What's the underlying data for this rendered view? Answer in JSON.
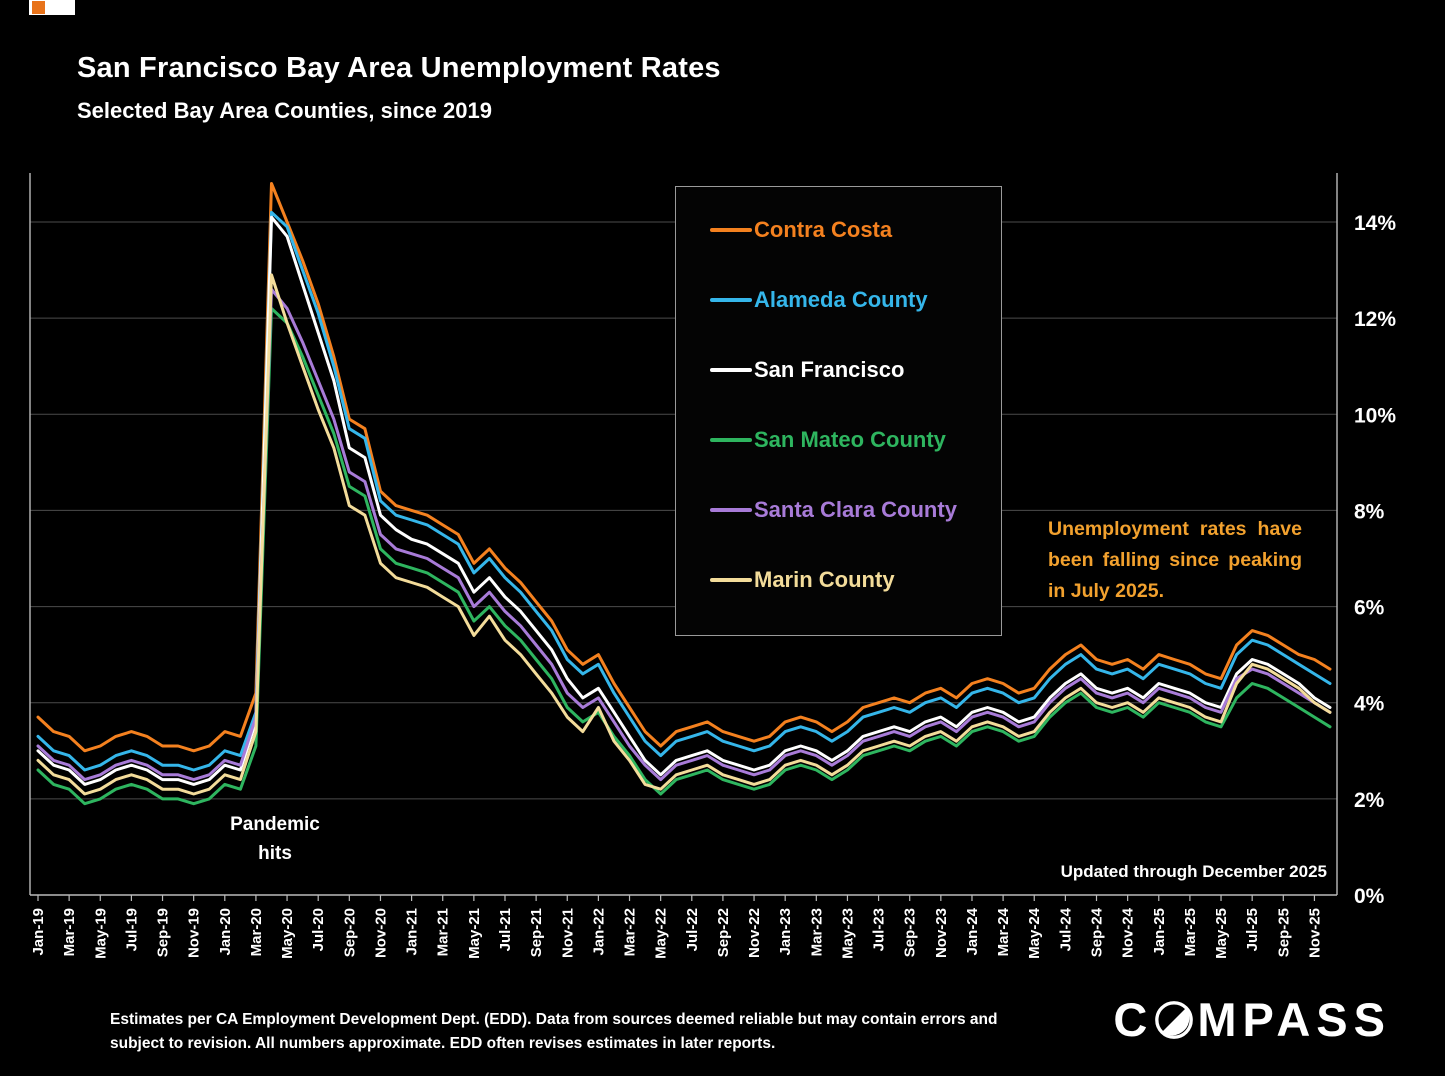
{
  "title": "San Francisco Bay Area Unemployment Rates",
  "subtitle": "Selected Bay Area Counties, since 2019",
  "annotations": {
    "pandemic_line1": "Pandemic",
    "pandemic_line2": "hits",
    "falling_note": "Unemployment rates have been falling since peaking in July 2025.",
    "updated": "Updated through December 2025"
  },
  "footer": {
    "disclaimer": "Estimates per CA Employment Development Dept. (EDD). Data from sources deemed reliable but may contain errors and subject to revision. All numbers approximate.  EDD often revises estimates in later reports.",
    "brand_c": "C",
    "brand_rest": "MPASS"
  },
  "colors": {
    "background": "#000000",
    "gridline": "#4b4b4b",
    "axis": "#bbbbbb",
    "text": "#ffffff",
    "note_gold": "#f2a12e"
  },
  "chart_data": {
    "type": "line",
    "title": "San Francisco Bay Area Unemployment Rates",
    "subtitle": "Selected Bay Area Counties, since 2019",
    "grid": "horizontal",
    "legend_position": "upper-middle-box",
    "ylim": [
      0,
      15
    ],
    "yticks": [
      0,
      2,
      4,
      6,
      8,
      10,
      12,
      14
    ],
    "ytick_suffix": "%",
    "x_tick_step": 2,
    "x": [
      "Jan-19",
      "Feb-19",
      "Mar-19",
      "Apr-19",
      "May-19",
      "Jun-19",
      "Jul-19",
      "Aug-19",
      "Sep-19",
      "Oct-19",
      "Nov-19",
      "Dec-19",
      "Jan-20",
      "Feb-20",
      "Mar-20",
      "Apr-20",
      "May-20",
      "Jun-20",
      "Jul-20",
      "Aug-20",
      "Sep-20",
      "Oct-20",
      "Nov-20",
      "Dec-20",
      "Jan-21",
      "Feb-21",
      "Mar-21",
      "Apr-21",
      "May-21",
      "Jun-21",
      "Jul-21",
      "Aug-21",
      "Sep-21",
      "Oct-21",
      "Nov-21",
      "Dec-21",
      "Jan-22",
      "Feb-22",
      "Mar-22",
      "Apr-22",
      "May-22",
      "Jun-22",
      "Jul-22",
      "Aug-22",
      "Sep-22",
      "Oct-22",
      "Nov-22",
      "Dec-22",
      "Jan-23",
      "Feb-23",
      "Mar-23",
      "Apr-23",
      "May-23",
      "Jun-23",
      "Jul-23",
      "Aug-23",
      "Sep-23",
      "Oct-23",
      "Nov-23",
      "Dec-23",
      "Jan-24",
      "Feb-24",
      "Mar-24",
      "Apr-24",
      "May-24",
      "Jun-24",
      "Jul-24",
      "Aug-24",
      "Sep-24",
      "Oct-24",
      "Nov-24",
      "Dec-24",
      "Jan-25",
      "Feb-25",
      "Mar-25",
      "Apr-25",
      "May-25",
      "Jun-25",
      "Jul-25",
      "Aug-25",
      "Sep-25",
      "Oct-25",
      "Nov-25",
      "Dec-25"
    ],
    "series": [
      {
        "name": "Contra Costa",
        "color": "#f4811f",
        "values": [
          3.7,
          3.4,
          3.3,
          3.0,
          3.1,
          3.3,
          3.4,
          3.3,
          3.1,
          3.1,
          3.0,
          3.1,
          3.4,
          3.3,
          4.2,
          14.8,
          14.0,
          13.2,
          12.3,
          11.2,
          9.9,
          9.7,
          8.4,
          8.1,
          8.0,
          7.9,
          7.7,
          7.5,
          6.9,
          7.2,
          6.8,
          6.5,
          6.1,
          5.7,
          5.1,
          4.8,
          5.0,
          4.4,
          3.9,
          3.4,
          3.1,
          3.4,
          3.5,
          3.6,
          3.4,
          3.3,
          3.2,
          3.3,
          3.6,
          3.7,
          3.6,
          3.4,
          3.6,
          3.9,
          4.0,
          4.1,
          4.0,
          4.2,
          4.3,
          4.1,
          4.4,
          4.5,
          4.4,
          4.2,
          4.3,
          4.7,
          5.0,
          5.2,
          4.9,
          4.8,
          4.9,
          4.7,
          5.0,
          4.9,
          4.8,
          4.6,
          4.5,
          5.2,
          5.5,
          5.4,
          5.2,
          5.0,
          4.9,
          4.7
        ]
      },
      {
        "name": "Alameda County",
        "color": "#35b6ea",
        "values": [
          3.3,
          3.0,
          2.9,
          2.6,
          2.7,
          2.9,
          3.0,
          2.9,
          2.7,
          2.7,
          2.6,
          2.7,
          3.0,
          2.9,
          3.8,
          14.2,
          13.9,
          13.0,
          12.1,
          11.0,
          9.7,
          9.5,
          8.2,
          7.9,
          7.8,
          7.7,
          7.5,
          7.3,
          6.7,
          7.0,
          6.6,
          6.3,
          5.9,
          5.5,
          4.9,
          4.6,
          4.8,
          4.2,
          3.7,
          3.2,
          2.9,
          3.2,
          3.3,
          3.4,
          3.2,
          3.1,
          3.0,
          3.1,
          3.4,
          3.5,
          3.4,
          3.2,
          3.4,
          3.7,
          3.8,
          3.9,
          3.8,
          4.0,
          4.1,
          3.9,
          4.2,
          4.3,
          4.2,
          4.0,
          4.1,
          4.5,
          4.8,
          5.0,
          4.7,
          4.6,
          4.7,
          4.5,
          4.8,
          4.7,
          4.6,
          4.4,
          4.3,
          5.0,
          5.3,
          5.2,
          5.0,
          4.8,
          4.6,
          4.4
        ]
      },
      {
        "name": "San Francisco",
        "color": "#ffffff",
        "values": [
          3.0,
          2.7,
          2.6,
          2.3,
          2.4,
          2.6,
          2.7,
          2.6,
          2.4,
          2.4,
          2.3,
          2.4,
          2.7,
          2.6,
          3.6,
          14.1,
          13.7,
          12.7,
          11.7,
          10.7,
          9.3,
          9.1,
          7.9,
          7.6,
          7.4,
          7.3,
          7.1,
          6.9,
          6.3,
          6.6,
          6.2,
          5.9,
          5.5,
          5.1,
          4.5,
          4.1,
          4.3,
          3.8,
          3.3,
          2.8,
          2.5,
          2.8,
          2.9,
          3.0,
          2.8,
          2.7,
          2.6,
          2.7,
          3.0,
          3.1,
          3.0,
          2.8,
          3.0,
          3.3,
          3.4,
          3.5,
          3.4,
          3.6,
          3.7,
          3.5,
          3.8,
          3.9,
          3.8,
          3.6,
          3.7,
          4.1,
          4.4,
          4.6,
          4.3,
          4.2,
          4.3,
          4.1,
          4.4,
          4.3,
          4.2,
          4.0,
          3.9,
          4.6,
          4.9,
          4.8,
          4.6,
          4.4,
          4.1,
          3.9
        ]
      },
      {
        "name": "San Mateo County",
        "color": "#2eb55f",
        "values": [
          2.6,
          2.3,
          2.2,
          1.9,
          2.0,
          2.2,
          2.3,
          2.2,
          2.0,
          2.0,
          1.9,
          2.0,
          2.3,
          2.2,
          3.1,
          12.2,
          11.9,
          11.2,
          10.4,
          9.6,
          8.5,
          8.3,
          7.2,
          6.9,
          6.8,
          6.7,
          6.5,
          6.3,
          5.7,
          6.0,
          5.6,
          5.3,
          4.9,
          4.5,
          3.9,
          3.6,
          3.8,
          3.3,
          2.9,
          2.4,
          2.1,
          2.4,
          2.5,
          2.6,
          2.4,
          2.3,
          2.2,
          2.3,
          2.6,
          2.7,
          2.6,
          2.4,
          2.6,
          2.9,
          3.0,
          3.1,
          3.0,
          3.2,
          3.3,
          3.1,
          3.4,
          3.5,
          3.4,
          3.2,
          3.3,
          3.7,
          4.0,
          4.2,
          3.9,
          3.8,
          3.9,
          3.7,
          4.0,
          3.9,
          3.8,
          3.6,
          3.5,
          4.1,
          4.4,
          4.3,
          4.1,
          3.9,
          3.7,
          3.5
        ]
      },
      {
        "name": "Santa Clara County",
        "color": "#a87bd8",
        "values": [
          3.1,
          2.8,
          2.7,
          2.4,
          2.5,
          2.7,
          2.8,
          2.7,
          2.5,
          2.5,
          2.4,
          2.5,
          2.8,
          2.7,
          3.7,
          12.6,
          12.2,
          11.5,
          10.7,
          9.9,
          8.8,
          8.6,
          7.5,
          7.2,
          7.1,
          7.0,
          6.8,
          6.6,
          6.0,
          6.3,
          5.9,
          5.6,
          5.2,
          4.8,
          4.2,
          3.9,
          4.1,
          3.6,
          3.1,
          2.7,
          2.4,
          2.7,
          2.8,
          2.9,
          2.7,
          2.6,
          2.5,
          2.6,
          2.9,
          3.0,
          2.9,
          2.7,
          2.9,
          3.2,
          3.3,
          3.4,
          3.3,
          3.5,
          3.6,
          3.4,
          3.7,
          3.8,
          3.7,
          3.5,
          3.6,
          4.0,
          4.3,
          4.5,
          4.2,
          4.1,
          4.2,
          4.0,
          4.3,
          4.2,
          4.1,
          3.9,
          3.8,
          4.5,
          4.7,
          4.6,
          4.4,
          4.2,
          4.0,
          3.8
        ]
      },
      {
        "name": "Marin County",
        "color": "#f3dc9a",
        "values": [
          2.8,
          2.5,
          2.4,
          2.1,
          2.2,
          2.4,
          2.5,
          2.4,
          2.2,
          2.2,
          2.1,
          2.2,
          2.5,
          2.4,
          3.4,
          12.9,
          11.9,
          11.0,
          10.1,
          9.3,
          8.1,
          7.9,
          6.9,
          6.6,
          6.5,
          6.4,
          6.2,
          6.0,
          5.4,
          5.8,
          5.3,
          5.0,
          4.6,
          4.2,
          3.7,
          3.4,
          3.9,
          3.2,
          2.8,
          2.3,
          2.2,
          2.5,
          2.6,
          2.7,
          2.5,
          2.4,
          2.3,
          2.4,
          2.7,
          2.8,
          2.7,
          2.5,
          2.7,
          3.0,
          3.1,
          3.2,
          3.1,
          3.3,
          3.4,
          3.2,
          3.5,
          3.6,
          3.5,
          3.3,
          3.4,
          3.8,
          4.1,
          4.3,
          4.0,
          3.9,
          4.0,
          3.8,
          4.1,
          4.0,
          3.9,
          3.7,
          3.6,
          4.4,
          4.8,
          4.7,
          4.5,
          4.3,
          4.0,
          3.8
        ]
      }
    ]
  }
}
